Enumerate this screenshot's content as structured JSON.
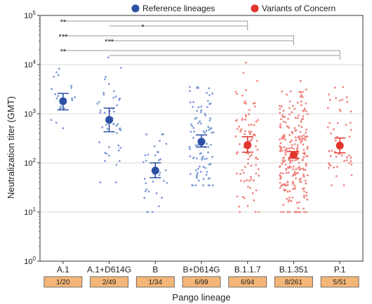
{
  "chart_data": {
    "type": "scatter",
    "y_scale": "log",
    "ylim": [
      1,
      100000
    ],
    "ylabel": "Neutralization titer (GMT)",
    "xlabel": "Pango lineage",
    "y_ticks": [
      {
        "value": 1,
        "base": "10",
        "exp": "0"
      },
      {
        "value": 10,
        "base": "10",
        "exp": "1"
      },
      {
        "value": 100,
        "base": "10",
        "exp": "2"
      },
      {
        "value": 1000,
        "base": "10",
        "exp": "3"
      },
      {
        "value": 10000,
        "base": "10",
        "exp": "4"
      },
      {
        "value": 100000,
        "base": "10",
        "exp": "5"
      }
    ],
    "grid": true,
    "legend": [
      {
        "name": "Reference lineages",
        "color": "#2b4fa3"
      },
      {
        "name": "Variants of Concern",
        "color": "#e0342c"
      }
    ],
    "categories": [
      "A.1",
      "A.1+D614G",
      "B",
      "B+D614G",
      "B.1.1.7",
      "B.1.351",
      "P.1"
    ],
    "counts": [
      "1/20",
      "2/49",
      "1/34",
      "6/99",
      "6/94",
      "8/261",
      "5/51"
    ],
    "groups": [
      "reference",
      "reference",
      "reference",
      "reference",
      "voc",
      "voc",
      "voc"
    ],
    "gmt": [
      1800,
      750,
      70,
      270,
      230,
      145,
      225
    ],
    "ci_low": [
      1200,
      430,
      50,
      210,
      165,
      125,
      160
    ],
    "ci_high": [
      2600,
      1300,
      100,
      370,
      340,
      170,
      320
    ],
    "point_ranges": [
      [
        500,
        12000
      ],
      [
        40,
        50000
      ],
      [
        10,
        380
      ],
      [
        35,
        3500
      ],
      [
        10,
        11000
      ],
      [
        10,
        10000
      ],
      [
        35,
        3500
      ]
    ],
    "point_counts": [
      20,
      49,
      34,
      99,
      94,
      261,
      51
    ],
    "significance": [
      {
        "from": "A.1",
        "to": "B.1.1.7",
        "label": "**"
      },
      {
        "from": "A.1+D614G",
        "to": "B.1.1.7",
        "label": "*"
      },
      {
        "from": "A.1",
        "to": "B.1.351",
        "label": "***"
      },
      {
        "from": "A.1+D614G",
        "to": "B.1.351",
        "label": "***"
      },
      {
        "from": "A.1",
        "to": "P.1",
        "label": "**"
      },
      {
        "from": "A.1+D614G",
        "to": "P.1",
        "label": ""
      }
    ]
  }
}
